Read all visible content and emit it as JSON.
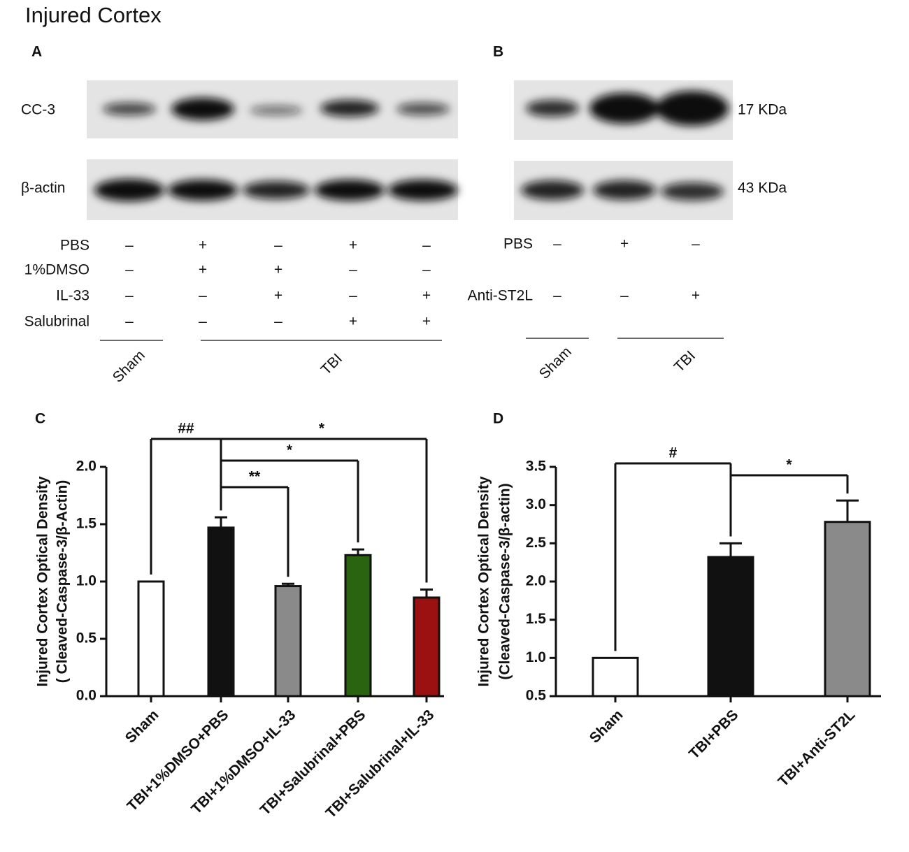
{
  "title": "Injured Cortex",
  "blot_a": {
    "label": "A",
    "rows": [
      "CC-3",
      "β-actin"
    ],
    "conditions": [
      {
        "name": "PBS",
        "marks": [
          "–",
          "+",
          "–",
          "+",
          "–"
        ]
      },
      {
        "name": "1%DMSO",
        "marks": [
          "–",
          "+",
          "+",
          "–",
          "–"
        ]
      },
      {
        "name": "IL-33",
        "marks": [
          "–",
          "–",
          "+",
          "–",
          "+"
        ]
      },
      {
        "name": "Salubrinal",
        "marks": [
          "–",
          "–",
          "–",
          "+",
          "+"
        ]
      }
    ],
    "groups": [
      "Sham",
      "TBI"
    ]
  },
  "blot_b": {
    "label": "B",
    "sizes": [
      "17 KDa",
      "43 KDa"
    ],
    "conditions": [
      {
        "name": "PBS",
        "marks": [
          "–",
          "+",
          "–"
        ]
      },
      {
        "name": "Anti-ST2L",
        "marks": [
          "–",
          "–",
          "+"
        ]
      }
    ],
    "groups": [
      "Sham",
      "TBI"
    ]
  },
  "chart_data": [
    {
      "type": "bar",
      "panel": "C",
      "ylabel": [
        "Injured Cortex Optical Density",
        "( Cleaved-Caspase-3/β-Actin)"
      ],
      "categories": [
        "Sham",
        "TBI+1%DMSO+PBS",
        "TBI+1%DMSO+IL-33",
        "TBI+Salubrinal+PBS",
        "TBI+Salubrinal+IL-33"
      ],
      "values": [
        1.0,
        1.47,
        0.96,
        1.23,
        0.86
      ],
      "errors": [
        null,
        0.09,
        0.02,
        0.05,
        0.07
      ],
      "colors": [
        "#ffffff",
        "#111111",
        "#8a8a8a",
        "#2b6410",
        "#9b1010"
      ],
      "ylim": [
        0,
        2.0
      ],
      "yticks": [
        {
          "value": 0,
          "label": "0.0"
        },
        0.5,
        {
          "value": 1,
          "label": "1.0"
        },
        1.5,
        {
          "value": 2,
          "label": "2.0"
        }
      ],
      "significance": [
        "##",
        "*",
        "*",
        "**"
      ]
    },
    {
      "type": "bar",
      "panel": "D",
      "ylabel": [
        "Injured Cortex Optical Density",
        "(Cleaved-Caspase-3/β-actin)"
      ],
      "categories": [
        "Sham",
        "TBI+PBS",
        "TBI+Anti-ST2L"
      ],
      "values": [
        1.0,
        2.32,
        2.78
      ],
      "errors": [
        null,
        0.18,
        0.28
      ],
      "colors": [
        "#ffffff",
        "#111111",
        "#8a8a8a"
      ],
      "ylim": [
        0.5,
        3.5
      ],
      "yticks": [
        0.5,
        {
          "value": 1,
          "label": "1.0"
        },
        1.5,
        {
          "value": 2,
          "label": "2.0"
        },
        2.5,
        {
          "value": 3,
          "label": "3.0"
        },
        3.5
      ],
      "significance": [
        "#",
        "*"
      ]
    }
  ]
}
